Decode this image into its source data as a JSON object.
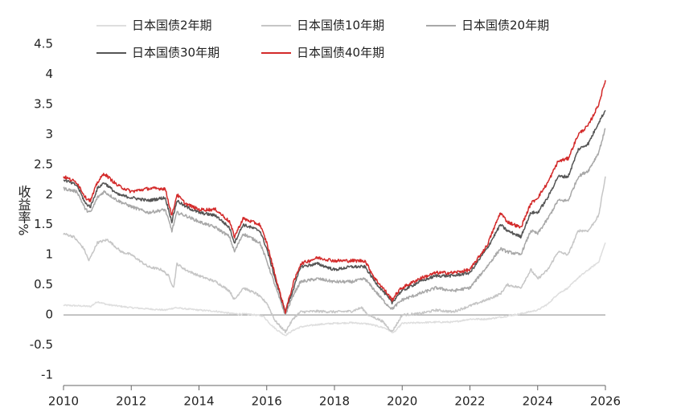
{
  "chart_data": {
    "type": "line",
    "title": "",
    "xlabel": "",
    "ylabel": "收益率%",
    "xlim": [
      2010,
      2026
    ],
    "ylim": [
      -1,
      4.5
    ],
    "x_ticks": [
      2010,
      2012,
      2014,
      2016,
      2018,
      2020,
      2022,
      2024,
      2026
    ],
    "y_ticks": [
      -1,
      -0.5,
      0,
      0.5,
      1,
      1.5,
      2,
      2.5,
      3,
      3.5,
      4,
      4.5
    ],
    "x_tick_labels": [
      "2010",
      "2012",
      "2014",
      "2016",
      "2018",
      "2020",
      "2022",
      "2024",
      "2026"
    ],
    "y_tick_labels": [
      "-1",
      "-0.5",
      "0",
      "0.5",
      "1",
      "1.5",
      "2",
      "2.5",
      "3",
      "3.5",
      "4",
      "4.5"
    ],
    "grid": false,
    "legend_position": "top",
    "series": [
      {
        "name": "日本国债2年期",
        "color": "#dedede",
        "points": [
          [
            2010.0,
            0.16
          ],
          [
            2010.5,
            0.15
          ],
          [
            2010.8,
            0.14
          ],
          [
            2011.0,
            0.22
          ],
          [
            2011.3,
            0.17
          ],
          [
            2012.0,
            0.12
          ],
          [
            2012.5,
            0.1
          ],
          [
            2013.0,
            0.08
          ],
          [
            2013.3,
            0.12
          ],
          [
            2013.6,
            0.1
          ],
          [
            2014.0,
            0.08
          ],
          [
            2014.5,
            0.06
          ],
          [
            2015.0,
            0.02
          ],
          [
            2015.5,
            0.01
          ],
          [
            2015.9,
            -0.02
          ],
          [
            2016.1,
            -0.15
          ],
          [
            2016.3,
            -0.25
          ],
          [
            2016.55,
            -0.34
          ],
          [
            2016.8,
            -0.25
          ],
          [
            2017.0,
            -0.2
          ],
          [
            2017.5,
            -0.16
          ],
          [
            2018.0,
            -0.14
          ],
          [
            2018.5,
            -0.13
          ],
          [
            2019.0,
            -0.15
          ],
          [
            2019.5,
            -0.22
          ],
          [
            2019.75,
            -0.3
          ],
          [
            2020.0,
            -0.14
          ],
          [
            2020.5,
            -0.13
          ],
          [
            2021.0,
            -0.12
          ],
          [
            2021.5,
            -0.12
          ],
          [
            2022.0,
            -0.07
          ],
          [
            2022.5,
            -0.07
          ],
          [
            2023.0,
            -0.03
          ],
          [
            2023.5,
            0.02
          ],
          [
            2024.0,
            0.08
          ],
          [
            2024.3,
            0.18
          ],
          [
            2024.6,
            0.35
          ],
          [
            2024.9,
            0.45
          ],
          [
            2025.2,
            0.62
          ],
          [
            2025.5,
            0.75
          ],
          [
            2025.8,
            0.88
          ],
          [
            2026.0,
            1.2
          ]
        ]
      },
      {
        "name": "日本国债10年期",
        "color": "#c6c6c6",
        "points": [
          [
            2010.0,
            1.35
          ],
          [
            2010.3,
            1.3
          ],
          [
            2010.6,
            1.1
          ],
          [
            2010.75,
            0.9
          ],
          [
            2011.0,
            1.2
          ],
          [
            2011.3,
            1.25
          ],
          [
            2011.7,
            1.05
          ],
          [
            2012.0,
            1.0
          ],
          [
            2012.5,
            0.8
          ],
          [
            2012.9,
            0.75
          ],
          [
            2013.1,
            0.65
          ],
          [
            2013.25,
            0.45
          ],
          [
            2013.35,
            0.85
          ],
          [
            2013.6,
            0.75
          ],
          [
            2014.0,
            0.65
          ],
          [
            2014.5,
            0.55
          ],
          [
            2014.9,
            0.4
          ],
          [
            2015.05,
            0.25
          ],
          [
            2015.3,
            0.45
          ],
          [
            2015.7,
            0.35
          ],
          [
            2016.0,
            0.2
          ],
          [
            2016.25,
            -0.1
          ],
          [
            2016.55,
            -0.28
          ],
          [
            2016.8,
            -0.05
          ],
          [
            2017.0,
            0.05
          ],
          [
            2017.5,
            0.06
          ],
          [
            2018.0,
            0.05
          ],
          [
            2018.5,
            0.06
          ],
          [
            2018.8,
            0.12
          ],
          [
            2019.0,
            0.0
          ],
          [
            2019.4,
            -0.1
          ],
          [
            2019.7,
            -0.28
          ],
          [
            2019.9,
            -0.1
          ],
          [
            2020.0,
            0.0
          ],
          [
            2020.5,
            0.02
          ],
          [
            2021.0,
            0.08
          ],
          [
            2021.5,
            0.05
          ],
          [
            2022.0,
            0.15
          ],
          [
            2022.5,
            0.25
          ],
          [
            2022.9,
            0.35
          ],
          [
            2023.1,
            0.5
          ],
          [
            2023.5,
            0.45
          ],
          [
            2023.8,
            0.75
          ],
          [
            2024.0,
            0.6
          ],
          [
            2024.3,
            0.75
          ],
          [
            2024.6,
            1.05
          ],
          [
            2024.9,
            1.0
          ],
          [
            2025.2,
            1.4
          ],
          [
            2025.5,
            1.4
          ],
          [
            2025.8,
            1.65
          ],
          [
            2026.0,
            2.3
          ]
        ]
      },
      {
        "name": "日本国债20年期",
        "color": "#a8a8a8",
        "points": [
          [
            2010.0,
            2.1
          ],
          [
            2010.4,
            2.05
          ],
          [
            2010.65,
            1.75
          ],
          [
            2010.8,
            1.7
          ],
          [
            2011.0,
            1.95
          ],
          [
            2011.2,
            2.05
          ],
          [
            2011.6,
            1.9
          ],
          [
            2012.0,
            1.8
          ],
          [
            2012.5,
            1.7
          ],
          [
            2013.0,
            1.75
          ],
          [
            2013.2,
            1.4
          ],
          [
            2013.35,
            1.7
          ],
          [
            2013.6,
            1.65
          ],
          [
            2014.0,
            1.55
          ],
          [
            2014.5,
            1.45
          ],
          [
            2014.9,
            1.3
          ],
          [
            2015.05,
            1.05
          ],
          [
            2015.3,
            1.35
          ],
          [
            2015.8,
            1.2
          ],
          [
            2016.0,
            0.9
          ],
          [
            2016.3,
            0.4
          ],
          [
            2016.55,
            0.0
          ],
          [
            2016.8,
            0.35
          ],
          [
            2017.0,
            0.55
          ],
          [
            2017.5,
            0.6
          ],
          [
            2018.0,
            0.55
          ],
          [
            2018.5,
            0.55
          ],
          [
            2018.9,
            0.6
          ],
          [
            2019.2,
            0.4
          ],
          [
            2019.5,
            0.2
          ],
          [
            2019.7,
            0.1
          ],
          [
            2019.9,
            0.2
          ],
          [
            2020.0,
            0.25
          ],
          [
            2020.5,
            0.35
          ],
          [
            2021.0,
            0.45
          ],
          [
            2021.5,
            0.4
          ],
          [
            2022.0,
            0.45
          ],
          [
            2022.5,
            0.8
          ],
          [
            2022.9,
            1.1
          ],
          [
            2023.1,
            1.05
          ],
          [
            2023.5,
            1.0
          ],
          [
            2023.8,
            1.4
          ],
          [
            2024.0,
            1.35
          ],
          [
            2024.3,
            1.6
          ],
          [
            2024.6,
            1.9
          ],
          [
            2024.9,
            1.9
          ],
          [
            2025.2,
            2.3
          ],
          [
            2025.5,
            2.4
          ],
          [
            2025.8,
            2.7
          ],
          [
            2026.0,
            3.1
          ]
        ]
      },
      {
        "name": "日本国债30年期",
        "color": "#555555",
        "points": [
          [
            2010.0,
            2.25
          ],
          [
            2010.4,
            2.15
          ],
          [
            2010.65,
            1.85
          ],
          [
            2010.8,
            1.8
          ],
          [
            2011.0,
            2.1
          ],
          [
            2011.2,
            2.2
          ],
          [
            2011.6,
            2.0
          ],
          [
            2012.0,
            1.95
          ],
          [
            2012.5,
            1.9
          ],
          [
            2013.0,
            1.95
          ],
          [
            2013.2,
            1.55
          ],
          [
            2013.35,
            1.9
          ],
          [
            2013.6,
            1.8
          ],
          [
            2014.0,
            1.7
          ],
          [
            2014.5,
            1.65
          ],
          [
            2014.9,
            1.45
          ],
          [
            2015.05,
            1.2
          ],
          [
            2015.3,
            1.5
          ],
          [
            2015.8,
            1.4
          ],
          [
            2016.0,
            1.1
          ],
          [
            2016.3,
            0.5
          ],
          [
            2016.55,
            0.05
          ],
          [
            2016.8,
            0.45
          ],
          [
            2017.0,
            0.8
          ],
          [
            2017.5,
            0.85
          ],
          [
            2018.0,
            0.75
          ],
          [
            2018.5,
            0.8
          ],
          [
            2018.9,
            0.8
          ],
          [
            2019.2,
            0.55
          ],
          [
            2019.5,
            0.35
          ],
          [
            2019.7,
            0.2
          ],
          [
            2019.9,
            0.35
          ],
          [
            2020.0,
            0.4
          ],
          [
            2020.5,
            0.55
          ],
          [
            2021.0,
            0.65
          ],
          [
            2021.5,
            0.65
          ],
          [
            2022.0,
            0.7
          ],
          [
            2022.5,
            1.1
          ],
          [
            2022.9,
            1.5
          ],
          [
            2023.1,
            1.4
          ],
          [
            2023.5,
            1.3
          ],
          [
            2023.8,
            1.7
          ],
          [
            2024.0,
            1.7
          ],
          [
            2024.3,
            1.95
          ],
          [
            2024.6,
            2.3
          ],
          [
            2024.9,
            2.3
          ],
          [
            2025.2,
            2.75
          ],
          [
            2025.5,
            2.85
          ],
          [
            2025.8,
            3.2
          ],
          [
            2026.0,
            3.4
          ]
        ]
      },
      {
        "name": "日本国债40年期",
        "color": "#d32a2a",
        "points": [
          [
            2010.0,
            2.3
          ],
          [
            2010.4,
            2.2
          ],
          [
            2010.65,
            1.95
          ],
          [
            2010.8,
            1.9
          ],
          [
            2011.0,
            2.2
          ],
          [
            2011.2,
            2.35
          ],
          [
            2011.6,
            2.15
          ],
          [
            2012.0,
            2.05
          ],
          [
            2012.5,
            2.1
          ],
          [
            2013.0,
            2.1
          ],
          [
            2013.2,
            1.65
          ],
          [
            2013.35,
            2.0
          ],
          [
            2013.6,
            1.85
          ],
          [
            2014.0,
            1.75
          ],
          [
            2014.5,
            1.75
          ],
          [
            2014.9,
            1.55
          ],
          [
            2015.05,
            1.3
          ],
          [
            2015.3,
            1.6
          ],
          [
            2015.8,
            1.5
          ],
          [
            2016.0,
            1.2
          ],
          [
            2016.3,
            0.55
          ],
          [
            2016.55,
            0.05
          ],
          [
            2016.8,
            0.55
          ],
          [
            2017.0,
            0.85
          ],
          [
            2017.5,
            0.95
          ],
          [
            2018.0,
            0.9
          ],
          [
            2018.5,
            0.9
          ],
          [
            2018.9,
            0.9
          ],
          [
            2019.2,
            0.6
          ],
          [
            2019.5,
            0.4
          ],
          [
            2019.7,
            0.25
          ],
          [
            2019.9,
            0.4
          ],
          [
            2020.0,
            0.45
          ],
          [
            2020.5,
            0.6
          ],
          [
            2021.0,
            0.7
          ],
          [
            2021.5,
            0.7
          ],
          [
            2022.0,
            0.75
          ],
          [
            2022.5,
            1.15
          ],
          [
            2022.9,
            1.7
          ],
          [
            2023.1,
            1.55
          ],
          [
            2023.5,
            1.45
          ],
          [
            2023.8,
            1.85
          ],
          [
            2024.0,
            1.95
          ],
          [
            2024.3,
            2.2
          ],
          [
            2024.6,
            2.55
          ],
          [
            2024.9,
            2.6
          ],
          [
            2025.2,
            3.0
          ],
          [
            2025.5,
            3.15
          ],
          [
            2025.8,
            3.5
          ],
          [
            2026.0,
            3.9
          ]
        ]
      }
    ]
  }
}
